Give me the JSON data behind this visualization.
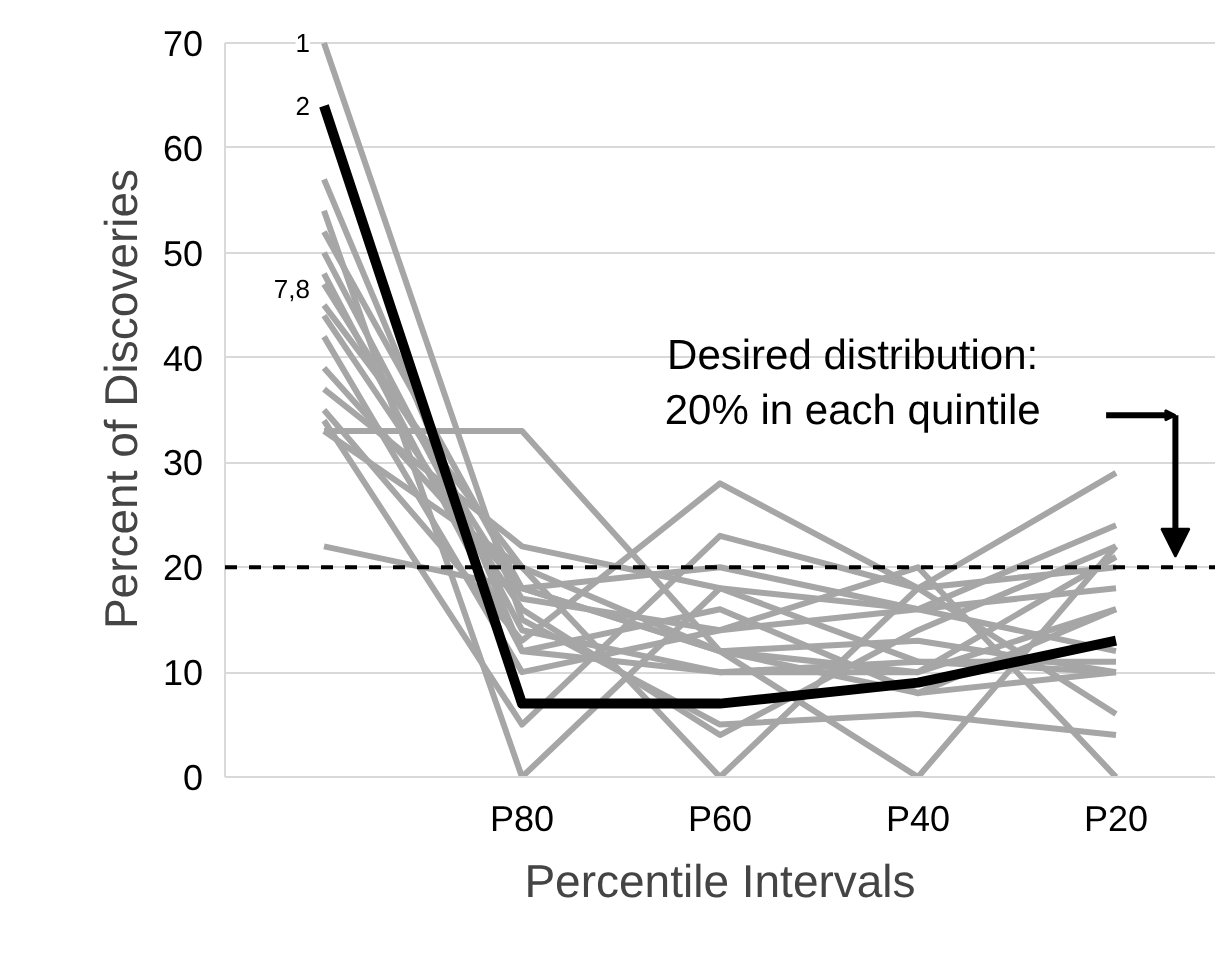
{
  "chart_data": {
    "type": "line",
    "xlabel": "Percentile Intervals",
    "ylabel": "Percent of Discoveries",
    "categories": [
      null,
      "P80",
      "P60",
      "P40",
      "P20"
    ],
    "ylim": [
      0,
      70
    ],
    "yticks": [
      0,
      10,
      20,
      30,
      40,
      50,
      60,
      70
    ],
    "grid": "y",
    "line_style": "solid",
    "series": [
      {
        "color": "#a6a6a6",
        "values": [
          70,
          15,
          5,
          6,
          4
        ]
      },
      {
        "color": "#a6a6a6",
        "values": [
          57,
          12,
          10,
          11,
          10
        ]
      },
      {
        "color": "#a6a6a6",
        "values": [
          54,
          0,
          18,
          16,
          12
        ]
      },
      {
        "color": "#a6a6a6",
        "values": [
          52,
          18,
          12,
          8,
          10
        ]
      },
      {
        "color": "#a6a6a6",
        "values": [
          50,
          14,
          10,
          10,
          16
        ]
      },
      {
        "color": "#a6a6a6",
        "values": [
          48,
          12,
          16,
          8,
          16
        ]
      },
      {
        "color": "#a6a6a6",
        "values": [
          45,
          20,
          12,
          13,
          10
        ]
      },
      {
        "color": "#a6a6a6",
        "values": [
          44,
          16,
          4,
          14,
          22
        ]
      },
      {
        "color": "#a6a6a6",
        "values": [
          42,
          10,
          14,
          16,
          18
        ]
      },
      {
        "color": "#a6a6a6",
        "values": [
          39,
          18,
          12,
          10,
          21
        ]
      },
      {
        "color": "#a6a6a6",
        "values": [
          37,
          22,
          18,
          11,
          11
        ]
      },
      {
        "color": "#a6a6a6",
        "values": [
          35,
          13,
          28,
          18,
          6
        ]
      },
      {
        "color": "#a6a6a6",
        "values": [
          34,
          5,
          23,
          18,
          20
        ]
      },
      {
        "color": "#a6a6a6",
        "values": [
          33,
          33,
          12,
          0,
          22
        ]
      },
      {
        "color": "#a6a6a6",
        "values": [
          33,
          20,
          0,
          18,
          29
        ]
      },
      {
        "color": "#a6a6a6",
        "values": [
          22,
          18,
          20,
          16,
          24
        ]
      },
      {
        "color": "#a6a6a6",
        "values": [
          47,
          17,
          14,
          20,
          0
        ]
      },
      {
        "color": "#000000",
        "values": [
          64,
          7,
          7,
          9,
          13
        ]
      }
    ],
    "ref_lines": [
      {
        "axis": "y",
        "value": 20,
        "color": "#000000",
        "line_style": "dashed"
      }
    ],
    "annotations": [
      {
        "text": "1",
        "y": 70
      },
      {
        "text": "2",
        "y": 64
      },
      {
        "text": "7,8",
        "y": 46.5
      },
      "Desired distribution:\n20% in each quintile"
    ]
  }
}
